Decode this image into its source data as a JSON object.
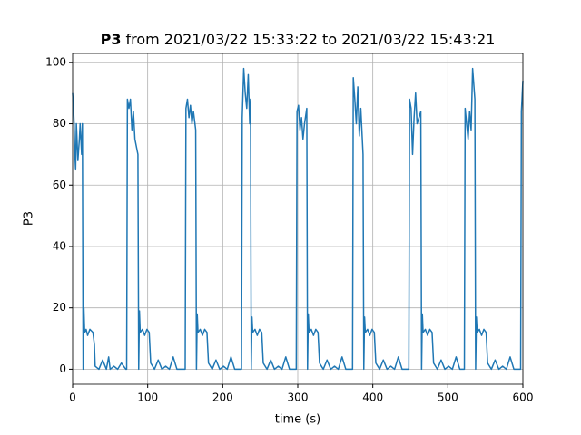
{
  "chart_data": {
    "type": "line",
    "title_bold": "P3",
    "title": "from 2021/03/22 15:33:22 to 2021/03/22 15:43:21",
    "xlabel": "time (s)",
    "ylabel": "P3",
    "xlim": [
      0,
      600
    ],
    "ylim": [
      -4.9,
      102.9
    ],
    "xticks": [
      0,
      100,
      200,
      300,
      400,
      500,
      600
    ],
    "yticks": [
      0,
      20,
      40,
      60,
      80,
      100
    ],
    "grid": true,
    "x": [
      0,
      1,
      2,
      3,
      4,
      5,
      7,
      9,
      10,
      12,
      13,
      14,
      15,
      16,
      18,
      20,
      23,
      27,
      29,
      30,
      35,
      40,
      45,
      48,
      50,
      55,
      60,
      65,
      71,
      72,
      73,
      75,
      77,
      79,
      81,
      83,
      87,
      88,
      89,
      90,
      93,
      96,
      99,
      102,
      104,
      109,
      114,
      119,
      124,
      129,
      134,
      139,
      149,
      150,
      151,
      153,
      155,
      157,
      159,
      161,
      164,
      165,
      166,
      167,
      170,
      173,
      176,
      179,
      181,
      186,
      191,
      196,
      201,
      206,
      211,
      216,
      224,
      225,
      226,
      228,
      230,
      232,
      234,
      236,
      237,
      238,
      239,
      240,
      243,
      246,
      249,
      252,
      254,
      259,
      264,
      269,
      274,
      279,
      284,
      289,
      297,
      298,
      299,
      301,
      303,
      305,
      307,
      309,
      312,
      313,
      314,
      315,
      318,
      321,
      324,
      327,
      329,
      334,
      339,
      344,
      349,
      354,
      359,
      364,
      372,
      373,
      374,
      376,
      378,
      380,
      382,
      384,
      387,
      388,
      389,
      390,
      393,
      396,
      399,
      402,
      404,
      409,
      414,
      419,
      424,
      429,
      434,
      439,
      447,
      448,
      449,
      451,
      453,
      455,
      457,
      459,
      464,
      465,
      466,
      467,
      470,
      473,
      476,
      479,
      481,
      486,
      491,
      496,
      501,
      506,
      511,
      516,
      521,
      522,
      523,
      525,
      527,
      529,
      531,
      533,
      536,
      537,
      538,
      539,
      542,
      545,
      548,
      551,
      553,
      558,
      563,
      568,
      573,
      578,
      583,
      588,
      596,
      597,
      598,
      600
    ],
    "series": [
      {
        "color": "#1f77b4",
        "values": [
          90,
          86,
          80,
          70,
          65,
          80,
          68,
          75,
          80,
          70,
          80,
          0,
          20,
          12,
          13,
          11,
          13,
          12,
          8,
          1,
          0,
          3,
          0,
          4,
          0,
          1,
          0,
          2,
          0,
          0,
          88,
          85,
          88,
          78,
          84,
          75,
          70,
          0,
          19,
          12,
          13,
          11,
          13,
          12,
          2,
          0,
          3,
          0,
          1,
          0,
          4,
          0,
          0,
          0,
          85,
          88,
          82,
          86,
          80,
          84,
          78,
          0,
          18,
          12,
          13,
          11,
          13,
          12,
          2,
          0,
          3,
          0,
          1,
          0,
          4,
          0,
          0,
          0,
          82,
          98,
          90,
          85,
          96,
          80,
          88,
          0,
          17,
          12,
          13,
          11,
          13,
          12,
          2,
          0,
          3,
          0,
          1,
          0,
          4,
          0,
          0,
          0,
          84,
          86,
          78,
          82,
          75,
          80,
          85,
          0,
          18,
          12,
          13,
          11,
          13,
          12,
          2,
          0,
          3,
          0,
          1,
          0,
          4,
          0,
          0,
          0,
          95,
          88,
          80,
          92,
          76,
          85,
          70,
          0,
          17,
          12,
          13,
          11,
          13,
          12,
          2,
          0,
          3,
          0,
          1,
          0,
          4,
          0,
          0,
          0,
          88,
          85,
          70,
          82,
          90,
          80,
          84,
          0,
          18,
          12,
          13,
          11,
          13,
          12,
          2,
          0,
          3,
          0,
          1,
          0,
          4,
          0,
          0,
          0,
          85,
          80,
          75,
          84,
          78,
          98,
          88,
          0,
          17,
          12,
          13,
          11,
          13,
          12,
          2,
          0,
          3,
          0,
          1,
          0,
          4,
          0,
          0,
          0,
          84,
          94
        ]
      }
    ]
  }
}
